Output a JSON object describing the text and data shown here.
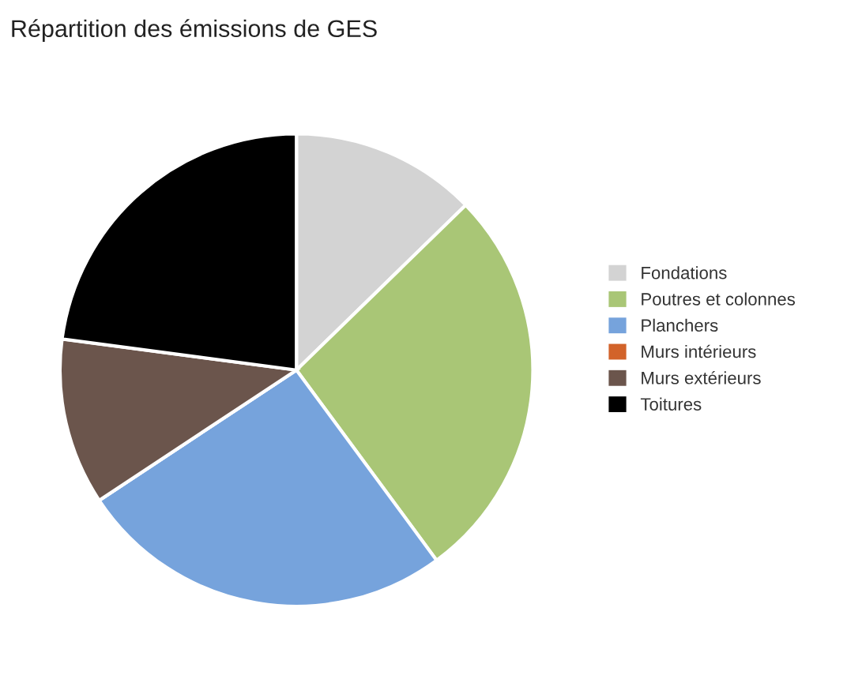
{
  "chart_data": {
    "type": "pie",
    "title": "Répartition des émissions de GES",
    "categories": [
      "Fondations",
      "Poutres et colonnes",
      "Planchers",
      "Murs intérieurs",
      "Murs extérieurs",
      "Toitures"
    ],
    "values": [
      12.7,
      27.2,
      25.8,
      0,
      11.4,
      22.9
    ],
    "colors": [
      "#d3d3d3",
      "#a9c676",
      "#76a3dc",
      "#d2632a",
      "#6b554c",
      "#000000"
    ],
    "legend": "right"
  }
}
